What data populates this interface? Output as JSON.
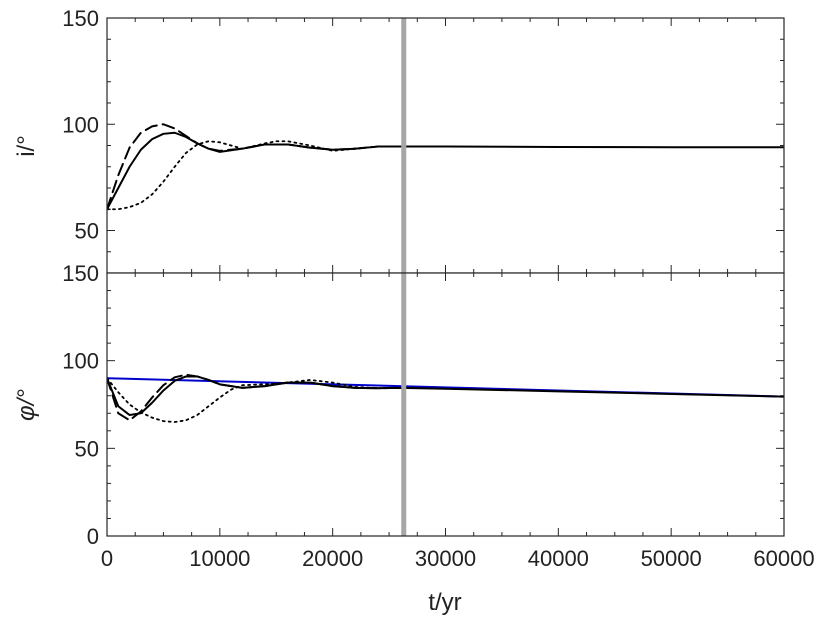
{
  "chart_data": [
    {
      "type": "line",
      "panel": "top",
      "ylabel": "i/°",
      "xlabel": "",
      "xlim": [
        0,
        60000
      ],
      "ylim": [
        30,
        150
      ],
      "xticks": [
        0,
        10000,
        20000,
        30000,
        40000,
        50000,
        60000
      ],
      "yticks": [
        50,
        100,
        150
      ],
      "ytick_labels": [
        "50",
        "100",
        "150"
      ],
      "grid": false,
      "vline": {
        "x": 26300,
        "color": "#a6a6a6"
      },
      "series": [
        {
          "style": "solid",
          "color": "#000000",
          "x": [
            0,
            1000,
            2000,
            3000,
            4000,
            5000,
            6000,
            7000,
            8000,
            9000,
            10000,
            12000,
            14000,
            16000,
            18000,
            20000,
            22000,
            24000,
            26000,
            30000,
            40000,
            50000,
            60000
          ],
          "y": [
            60,
            70,
            80,
            88,
            93,
            95.5,
            96,
            94,
            91,
            88.5,
            87,
            88.5,
            90.5,
            90.5,
            89,
            88,
            88.5,
            89.5,
            89.5,
            89.5,
            89.3,
            89.2,
            89.2
          ]
        },
        {
          "style": "dashed",
          "color": "#000000",
          "x": [
            0,
            1000,
            2000,
            3000,
            4000,
            5000,
            6000,
            7000,
            8000,
            9000,
            10000,
            12000,
            14000,
            16000,
            18000,
            20000,
            22000,
            24000,
            26000
          ],
          "y": [
            60,
            76,
            89,
            96,
            99,
            100,
            98,
            94.5,
            91,
            88.5,
            87.5,
            88.5,
            90.5,
            90.5,
            89,
            88,
            88.5,
            89.5,
            89.5
          ]
        },
        {
          "style": "dotted",
          "color": "#000000",
          "x": [
            0,
            1000,
            2000,
            3000,
            4000,
            5000,
            6000,
            7000,
            8000,
            9000,
            10000,
            11000,
            12000,
            14000,
            15000,
            16000,
            18000,
            20000,
            22000,
            24000,
            26000
          ],
          "y": [
            60,
            60,
            61,
            63,
            67,
            73,
            80,
            86.5,
            90.5,
            92,
            91.5,
            90,
            88.5,
            91,
            92,
            92,
            90,
            87.5,
            88.5,
            89.5,
            89.5
          ]
        }
      ]
    },
    {
      "type": "line",
      "panel": "bottom",
      "ylabel": "φ/°",
      "xlabel": "t/yr",
      "xlim": [
        0,
        60000
      ],
      "ylim": [
        0,
        150
      ],
      "xticks": [
        0,
        10000,
        20000,
        30000,
        40000,
        50000,
        60000
      ],
      "xtick_labels": [
        "0",
        "10000",
        "20000",
        "30000",
        "40000",
        "50000",
        "60000"
      ],
      "yticks": [
        0,
        50,
        100,
        150
      ],
      "ytick_labels": [
        "0",
        "50",
        "100",
        "150"
      ],
      "grid": false,
      "vline": {
        "x": 26300,
        "color": "#a6a6a6"
      },
      "series": [
        {
          "style": "solid",
          "color": "#0000cc",
          "x": [
            0,
            60000
          ],
          "y": [
            90,
            79.5
          ]
        },
        {
          "style": "solid",
          "color": "#000000",
          "x": [
            0,
            1000,
            2000,
            3000,
            4000,
            5000,
            6000,
            7000,
            8000,
            9000,
            10000,
            12000,
            14000,
            16000,
            18000,
            20000,
            22000,
            24000,
            26000,
            30000,
            40000,
            50000,
            60000
          ],
          "y": [
            90,
            74,
            69,
            70,
            76,
            83,
            88.5,
            91,
            91,
            89,
            86.5,
            84.5,
            85.5,
            87.5,
            87.5,
            85.5,
            84.5,
            84.3,
            84.5,
            84,
            82.5,
            81,
            79.5
          ]
        },
        {
          "style": "dashed",
          "color": "#000000",
          "x": [
            0,
            1000,
            2000,
            3000,
            4000,
            5000,
            6000,
            7000,
            8000,
            9000,
            10000,
            12000,
            14000,
            16000,
            18000,
            20000,
            22000,
            24000,
            26000
          ],
          "y": [
            90,
            70,
            66,
            71,
            79,
            86,
            90.5,
            92,
            91,
            89,
            86.5,
            84.5,
            85.5,
            87.5,
            87.5,
            85.5,
            84.5,
            84.3,
            84.5
          ]
        },
        {
          "style": "dotted",
          "color": "#000000",
          "x": [
            0,
            1000,
            2000,
            3000,
            4000,
            5000,
            6000,
            7000,
            8000,
            9000,
            10000,
            11000,
            12000,
            14000,
            16000,
            18000,
            20000,
            22000,
            24000,
            26000
          ],
          "y": [
            90,
            82,
            75,
            70.5,
            67.5,
            65.5,
            65,
            66,
            69,
            74,
            79,
            83.5,
            86,
            86.5,
            87.5,
            89,
            87.5,
            85,
            84.3,
            84.5
          ]
        }
      ]
    }
  ]
}
